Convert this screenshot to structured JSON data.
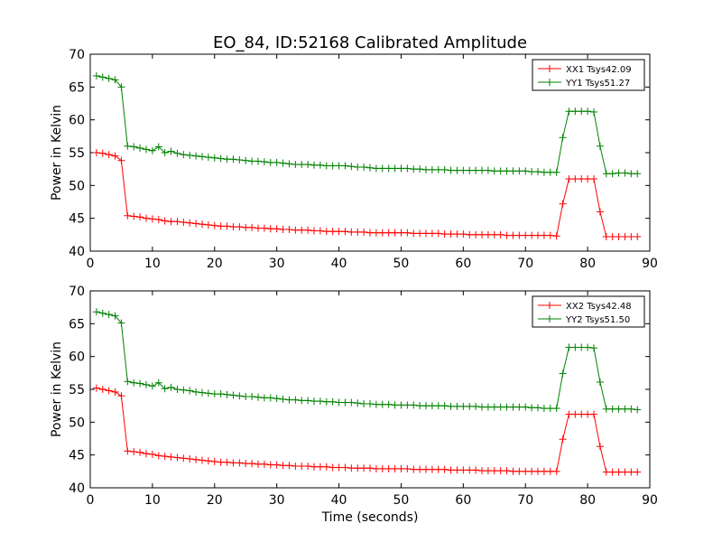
{
  "figure": {
    "title": "EO_84, ID:52168 Calibrated Amplitude"
  },
  "colors": {
    "xx": "#ff0000",
    "yy": "#008000",
    "axes": "#000000"
  },
  "chart_data": [
    {
      "type": "line",
      "title": "EO_84, ID:52168 Calibrated Amplitude",
      "xlabel": "",
      "ylabel": "Power in Kelvin",
      "xlim": [
        0,
        90
      ],
      "ylim": [
        40,
        70
      ],
      "xticks": [
        0,
        10,
        20,
        30,
        40,
        50,
        60,
        70,
        80,
        90
      ],
      "yticks": [
        40,
        45,
        50,
        55,
        60,
        65,
        70
      ],
      "grid": false,
      "legend": "top-right",
      "x": [
        1,
        2,
        3,
        4,
        5,
        6,
        7,
        8,
        9,
        10,
        11,
        12,
        13,
        14,
        15,
        16,
        17,
        18,
        19,
        20,
        21,
        22,
        23,
        24,
        25,
        26,
        27,
        28,
        29,
        30,
        31,
        32,
        33,
        34,
        35,
        36,
        37,
        38,
        39,
        40,
        41,
        42,
        43,
        44,
        45,
        46,
        47,
        48,
        49,
        50,
        51,
        52,
        53,
        54,
        55,
        56,
        57,
        58,
        59,
        60,
        61,
        62,
        63,
        64,
        65,
        66,
        67,
        68,
        69,
        70,
        71,
        72,
        73,
        74,
        75,
        76,
        77,
        78,
        79,
        80,
        81,
        82,
        83,
        84,
        85,
        86,
        87,
        88
      ],
      "series": [
        {
          "name": "XX1 Tsys42.09",
          "color": "#ff0000",
          "values": [
            55.0,
            54.9,
            54.7,
            54.5,
            53.8,
            45.4,
            45.3,
            45.2,
            45.0,
            44.9,
            44.8,
            44.6,
            44.5,
            44.5,
            44.4,
            44.3,
            44.2,
            44.1,
            44.0,
            43.9,
            43.8,
            43.8,
            43.7,
            43.7,
            43.6,
            43.6,
            43.5,
            43.5,
            43.4,
            43.4,
            43.3,
            43.3,
            43.2,
            43.2,
            43.2,
            43.1,
            43.1,
            43.0,
            43.0,
            43.0,
            43.0,
            42.9,
            42.9,
            42.9,
            42.8,
            42.8,
            42.8,
            42.8,
            42.8,
            42.8,
            42.8,
            42.7,
            42.7,
            42.7,
            42.7,
            42.7,
            42.6,
            42.6,
            42.6,
            42.6,
            42.5,
            42.5,
            42.5,
            42.5,
            42.5,
            42.5,
            42.4,
            42.4,
            42.4,
            42.4,
            42.4,
            42.4,
            42.4,
            42.4,
            42.3,
            47.2,
            51.0,
            51.0,
            51.0,
            51.0,
            51.0,
            46.0,
            42.2,
            42.2,
            42.2,
            42.2,
            42.2,
            42.2
          ]
        },
        {
          "name": "YY1 Tsys51.27",
          "color": "#008000",
          "values": [
            66.7,
            66.5,
            66.3,
            66.1,
            65.0,
            56.0,
            55.9,
            55.7,
            55.5,
            55.3,
            55.9,
            55.0,
            55.2,
            54.9,
            54.7,
            54.6,
            54.5,
            54.4,
            54.3,
            54.2,
            54.1,
            54.0,
            54.0,
            53.9,
            53.8,
            53.7,
            53.7,
            53.6,
            53.5,
            53.5,
            53.4,
            53.3,
            53.2,
            53.2,
            53.2,
            53.1,
            53.1,
            53.0,
            53.0,
            53.0,
            53.0,
            52.9,
            52.8,
            52.8,
            52.7,
            52.6,
            52.6,
            52.6,
            52.6,
            52.6,
            52.6,
            52.5,
            52.5,
            52.4,
            52.4,
            52.4,
            52.4,
            52.3,
            52.3,
            52.3,
            52.3,
            52.3,
            52.3,
            52.3,
            52.2,
            52.2,
            52.2,
            52.2,
            52.2,
            52.2,
            52.1,
            52.1,
            52.0,
            52.0,
            52.0,
            57.3,
            61.3,
            61.3,
            61.3,
            61.3,
            61.2,
            56.0,
            51.8,
            51.8,
            51.9,
            51.9,
            51.8,
            51.8
          ]
        }
      ]
    },
    {
      "type": "line",
      "title": "",
      "xlabel": "Time (seconds)",
      "ylabel": "Power in Kelvin",
      "xlim": [
        0,
        90
      ],
      "ylim": [
        40,
        70
      ],
      "xticks": [
        0,
        10,
        20,
        30,
        40,
        50,
        60,
        70,
        80,
        90
      ],
      "yticks": [
        40,
        45,
        50,
        55,
        60,
        65,
        70
      ],
      "grid": false,
      "legend": "top-right",
      "x": [
        1,
        2,
        3,
        4,
        5,
        6,
        7,
        8,
        9,
        10,
        11,
        12,
        13,
        14,
        15,
        16,
        17,
        18,
        19,
        20,
        21,
        22,
        23,
        24,
        25,
        26,
        27,
        28,
        29,
        30,
        31,
        32,
        33,
        34,
        35,
        36,
        37,
        38,
        39,
        40,
        41,
        42,
        43,
        44,
        45,
        46,
        47,
        48,
        49,
        50,
        51,
        52,
        53,
        54,
        55,
        56,
        57,
        58,
        59,
        60,
        61,
        62,
        63,
        64,
        65,
        66,
        67,
        68,
        69,
        70,
        71,
        72,
        73,
        74,
        75,
        76,
        77,
        78,
        79,
        80,
        81,
        82,
        83,
        84,
        85,
        86,
        87,
        88
      ],
      "series": [
        {
          "name": "XX2 Tsys42.48",
          "color": "#ff0000",
          "values": [
            55.2,
            55.0,
            54.8,
            54.6,
            54.0,
            45.6,
            45.5,
            45.4,
            45.2,
            45.1,
            44.9,
            44.8,
            44.7,
            44.6,
            44.5,
            44.4,
            44.3,
            44.2,
            44.1,
            44.0,
            43.9,
            43.9,
            43.8,
            43.8,
            43.7,
            43.7,
            43.6,
            43.6,
            43.5,
            43.5,
            43.4,
            43.4,
            43.3,
            43.3,
            43.3,
            43.2,
            43.2,
            43.2,
            43.1,
            43.1,
            43.1,
            43.0,
            43.0,
            43.0,
            43.0,
            42.9,
            42.9,
            42.9,
            42.9,
            42.9,
            42.9,
            42.8,
            42.8,
            42.8,
            42.8,
            42.8,
            42.8,
            42.7,
            42.7,
            42.7,
            42.7,
            42.7,
            42.6,
            42.6,
            42.6,
            42.6,
            42.6,
            42.5,
            42.5,
            42.5,
            42.5,
            42.5,
            42.5,
            42.5,
            42.5,
            47.4,
            51.2,
            51.2,
            51.2,
            51.2,
            51.2,
            46.3,
            42.4,
            42.4,
            42.4,
            42.4,
            42.4,
            42.4
          ]
        },
        {
          "name": "YY2 Tsys51.50",
          "color": "#008000",
          "values": [
            66.8,
            66.6,
            66.4,
            66.2,
            65.1,
            56.2,
            56.0,
            55.9,
            55.7,
            55.5,
            56.0,
            55.1,
            55.3,
            55.0,
            54.9,
            54.8,
            54.6,
            54.5,
            54.4,
            54.3,
            54.3,
            54.2,
            54.1,
            54.0,
            53.9,
            53.9,
            53.8,
            53.7,
            53.7,
            53.6,
            53.5,
            53.4,
            53.4,
            53.3,
            53.3,
            53.2,
            53.2,
            53.1,
            53.1,
            53.0,
            53.0,
            53.0,
            52.9,
            52.8,
            52.8,
            52.7,
            52.7,
            52.7,
            52.6,
            52.6,
            52.6,
            52.6,
            52.5,
            52.5,
            52.5,
            52.5,
            52.5,
            52.4,
            52.4,
            52.4,
            52.4,
            52.4,
            52.3,
            52.3,
            52.3,
            52.3,
            52.3,
            52.3,
            52.3,
            52.3,
            52.2,
            52.2,
            52.1,
            52.1,
            52.1,
            57.4,
            61.4,
            61.4,
            61.4,
            61.4,
            61.3,
            56.1,
            52.0,
            52.0,
            52.0,
            52.0,
            52.0,
            51.9
          ]
        }
      ]
    }
  ]
}
